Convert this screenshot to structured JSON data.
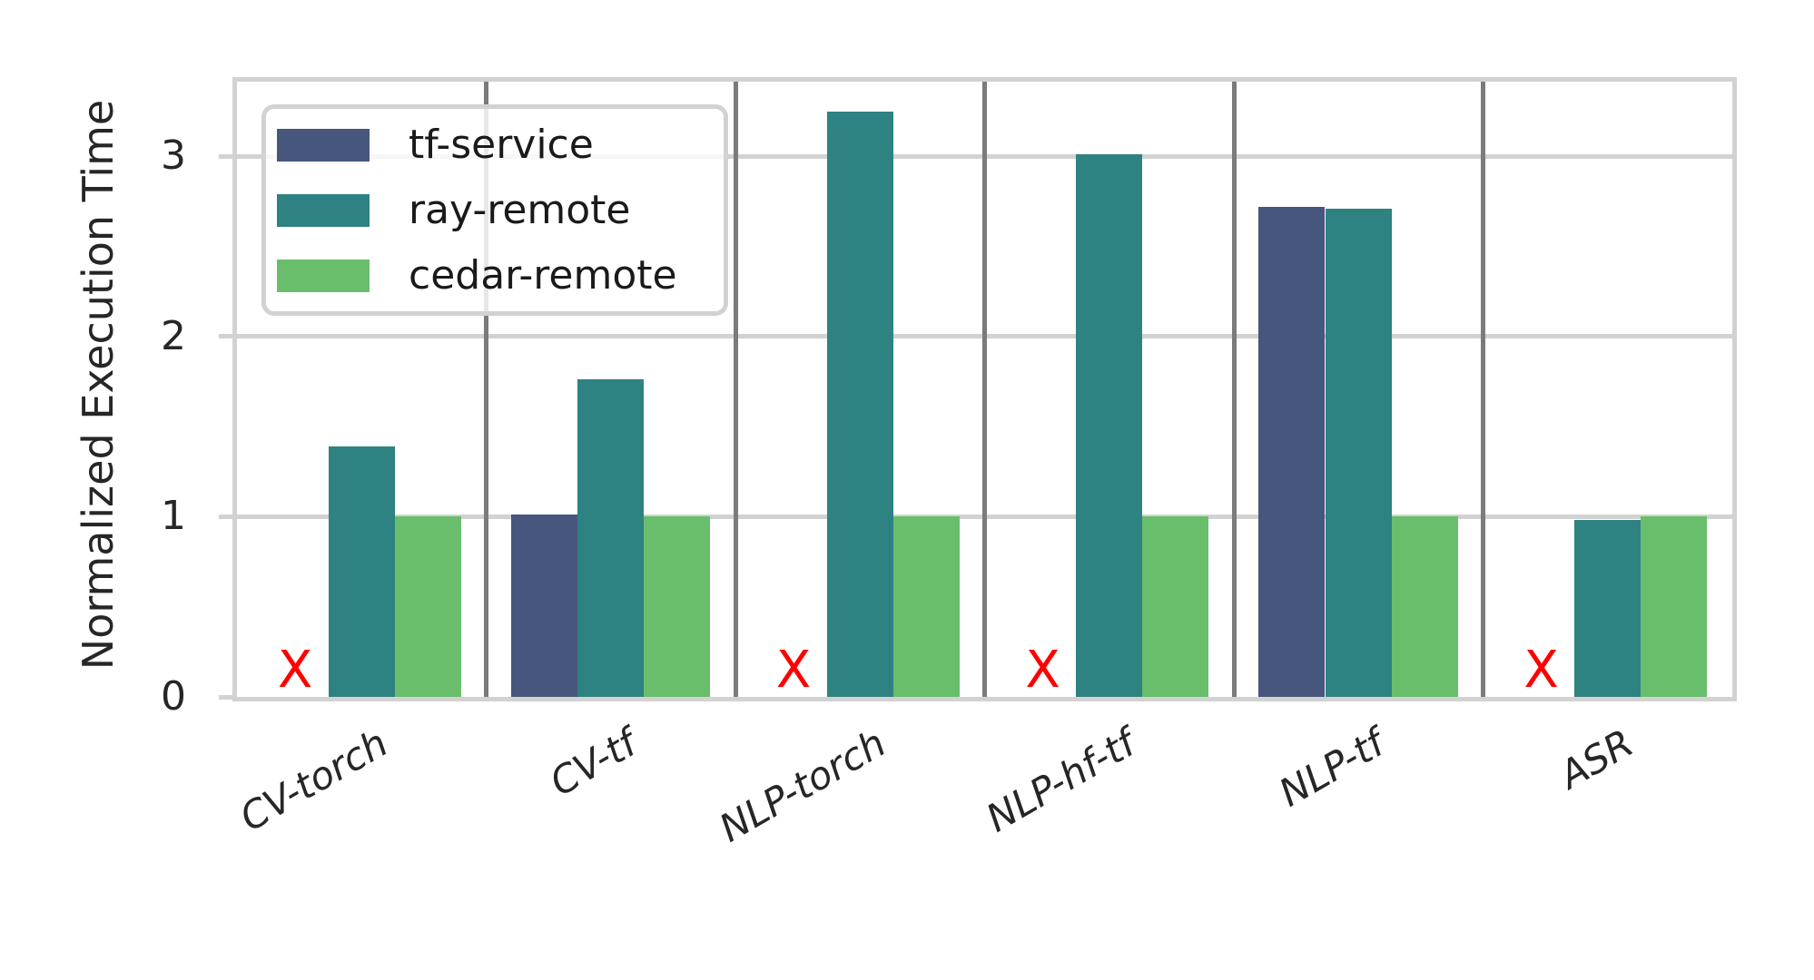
{
  "figure": {
    "background": "#ffffff",
    "text_color": "#262626"
  },
  "chart_data": {
    "type": "bar",
    "title": "",
    "xlabel": "",
    "ylabel": "Normalized Execution Time",
    "categories": [
      "CV-torch",
      "CV-tf",
      "NLP-torch",
      "NLP-hf-tf",
      "NLP-tf",
      "ASR"
    ],
    "series": [
      {
        "name": "tf-service",
        "color": "#46567c",
        "values": [
          null,
          1.01,
          null,
          null,
          2.72,
          null
        ]
      },
      {
        "name": "ray-remote",
        "color": "#2e8281",
        "values": [
          1.39,
          1.76,
          3.25,
          3.01,
          2.71,
          0.98
        ]
      },
      {
        "name": "cedar-remote",
        "color": "#69be6c",
        "values": [
          1.0,
          1.0,
          1.0,
          1.0,
          1.0,
          1.0
        ]
      }
    ],
    "missing_marker": {
      "symbol": "X",
      "color": "#ff0000",
      "meaning": "bar not available for this series"
    },
    "yticks": [
      0,
      1,
      2,
      3
    ],
    "ylim": [
      0,
      3.42
    ],
    "grid": true,
    "group_separators": true,
    "legend_position": "upper left"
  }
}
